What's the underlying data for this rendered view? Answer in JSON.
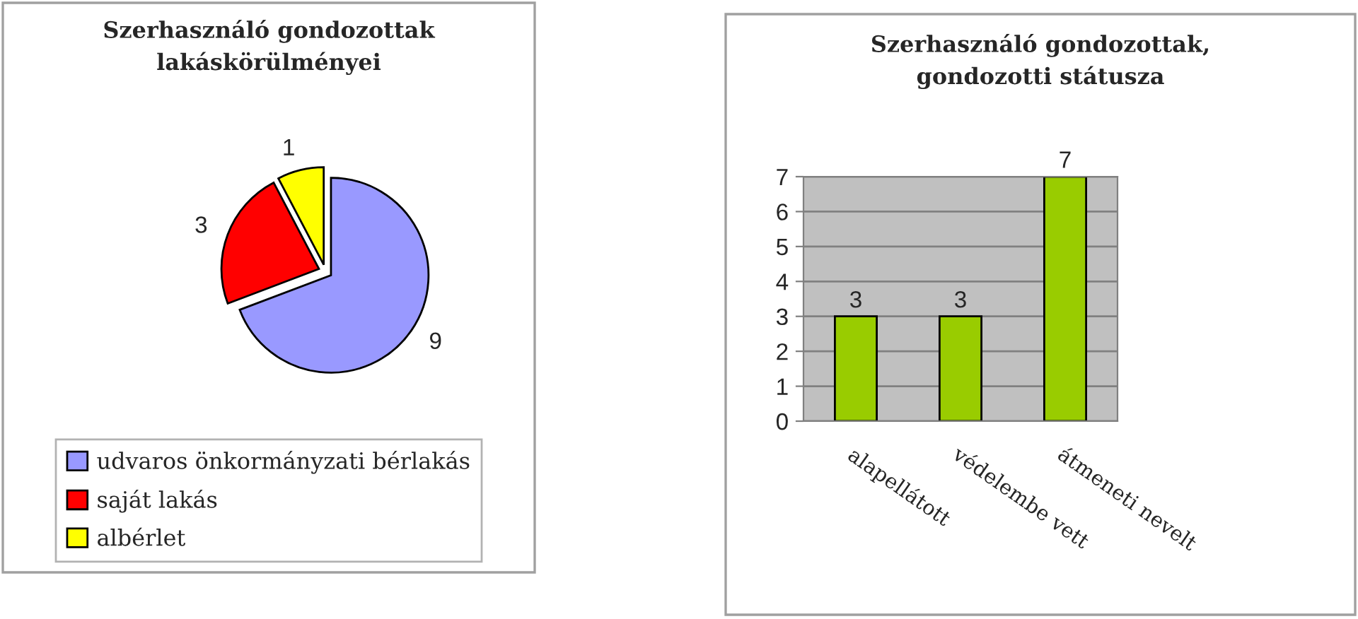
{
  "chart_data": [
    {
      "type": "pie",
      "title": "Szerhasználó gondozottak\nlakáskörülményei",
      "categories": [
        "udvaros önkormányzati bérlakás",
        "saját lakás",
        "albérlet"
      ],
      "values": [
        9,
        3,
        1
      ],
      "colors": [
        "#9999ff",
        "#ff0000",
        "#ffff00"
      ],
      "data_labels": true,
      "legend": "bottom"
    },
    {
      "type": "bar",
      "title": "Szerhasználó gondozottak,\ngondozotti státusza",
      "categories": [
        "alapellátott",
        "védelembe vett",
        "átmeneti nevelt"
      ],
      "values": [
        3,
        3,
        7
      ],
      "color": "#99cc00",
      "ylim": [
        0,
        7
      ],
      "yticks": [
        0,
        1,
        2,
        3,
        4,
        5,
        6,
        7
      ],
      "grid": "y",
      "data_labels": true
    }
  ]
}
